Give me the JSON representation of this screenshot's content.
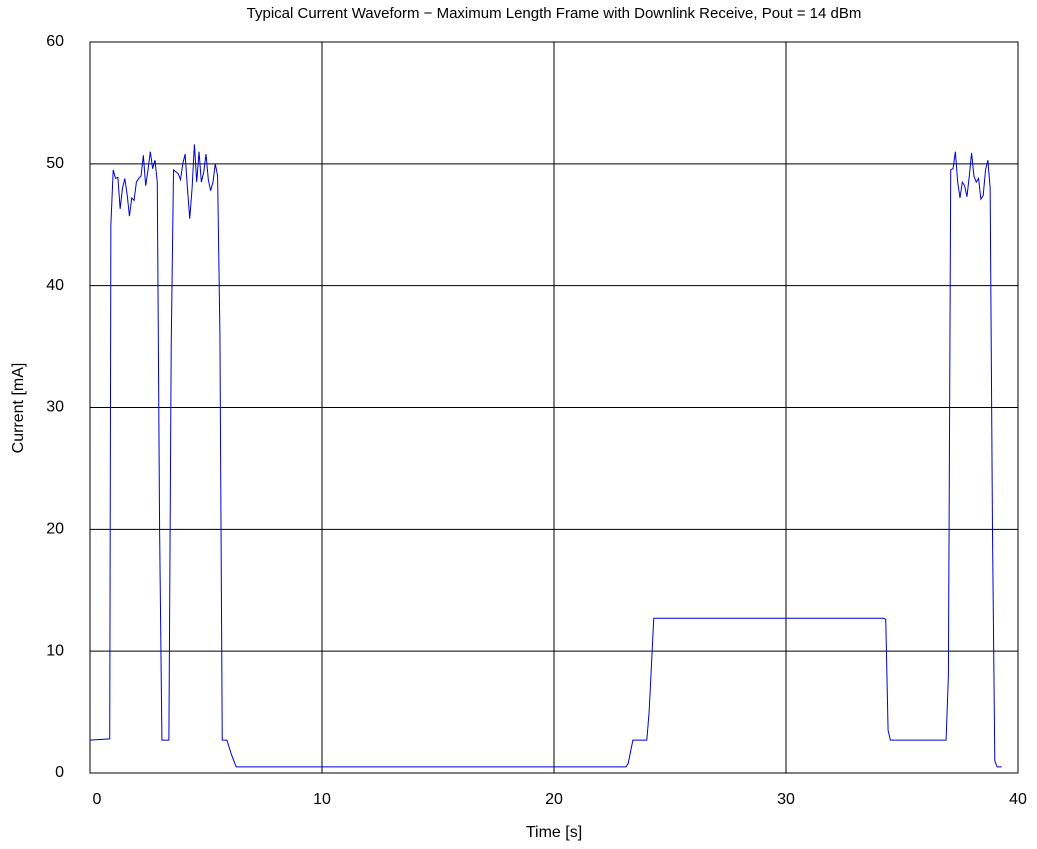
{
  "chart_data": {
    "type": "line",
    "title": "Typical Current Waveform − Maximum Length Frame with Downlink Receive, Pout = 14 dBm",
    "xlabel": "Time [s]",
    "ylabel": "Current [mA]",
    "color": "#0000cc",
    "grid": true,
    "xlim": [
      0,
      40
    ],
    "xticks": [
      0,
      10,
      20,
      30,
      40
    ],
    "ylim": [
      0,
      60
    ],
    "yticks": [
      0,
      10,
      20,
      30,
      40,
      50,
      60
    ],
    "x": [
      0,
      0.85,
      0.9,
      1.0,
      1.1,
      1.2,
      1.3,
      1.4,
      1.5,
      1.6,
      1.7,
      1.8,
      1.9,
      2.0,
      2.1,
      2.2,
      2.3,
      2.4,
      2.5,
      2.6,
      2.7,
      2.8,
      2.9,
      3.0,
      3.1,
      3.4,
      3.5,
      3.6,
      3.8,
      3.9,
      4.0,
      4.1,
      4.2,
      4.3,
      4.4,
      4.5,
      4.6,
      4.7,
      4.8,
      4.9,
      5.0,
      5.1,
      5.2,
      5.3,
      5.4,
      5.5,
      5.6,
      5.7,
      5.9,
      6.1,
      6.3,
      23.1,
      23.2,
      23.4,
      24.0,
      24.1,
      24.3,
      34.2,
      34.3,
      34.4,
      34.5,
      36.9,
      37.0,
      37.1,
      37.2,
      37.3,
      37.4,
      37.5,
      37.6,
      37.7,
      37.8,
      37.9,
      38.0,
      38.1,
      38.2,
      38.3,
      38.4,
      38.5,
      38.6,
      38.7,
      38.8,
      38.9,
      39.0,
      39.1,
      39.3
    ],
    "values": [
      2.7,
      2.8,
      45,
      49.5,
      48.8,
      48.9,
      46.3,
      48,
      48.8,
      47.5,
      45.7,
      47.2,
      47.0,
      48.5,
      48.8,
      49.0,
      50.7,
      48.2,
      49.5,
      51.0,
      49.6,
      50.3,
      48.5,
      20,
      2.7,
      2.7,
      35,
      49.5,
      49.2,
      48.7,
      50.0,
      50.8,
      48.0,
      45.5,
      48.0,
      51.6,
      48.5,
      51.0,
      48.5,
      49.3,
      50.8,
      48.7,
      47.8,
      48.5,
      50.0,
      49.0,
      36,
      2.7,
      2.7,
      1.5,
      0.5,
      0.5,
      0.8,
      2.7,
      2.7,
      5,
      12.7,
      12.7,
      12.6,
      3.5,
      2.7,
      2.7,
      8,
      49.5,
      49.6,
      51.0,
      48.5,
      47.2,
      48.5,
      48.2,
      47.3,
      49.0,
      50.9,
      49.0,
      48.5,
      48.8,
      47.1,
      47.4,
      49.5,
      50.3,
      48,
      20,
      1.0,
      0.5,
      0.5
    ]
  }
}
